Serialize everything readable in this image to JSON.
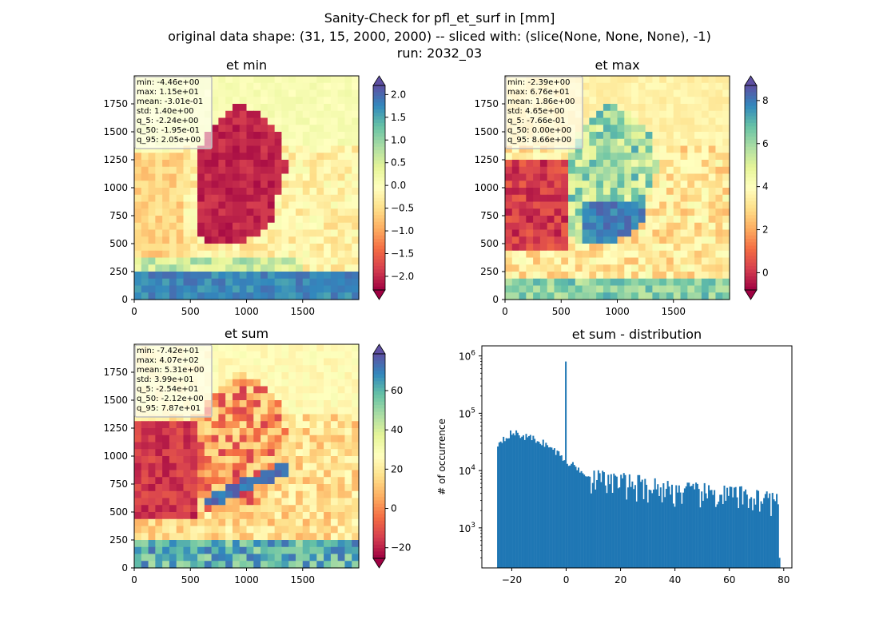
{
  "figure": {
    "title_lines": [
      "Sanity-Check for pfl_et_surf in [mm]",
      "original data shape: (31, 15, 2000, 2000) -- sliced with: (slice(None, None, None), -1)",
      "run: 2032_03"
    ]
  },
  "chart_data": [
    {
      "type": "heatmap",
      "title": "et min",
      "xticks": [
        0,
        500,
        1000,
        1500
      ],
      "yticks": [
        0,
        250,
        500,
        750,
        1000,
        1250,
        1500,
        1750
      ],
      "xlim": [
        0,
        2000
      ],
      "ylim": [
        0,
        2000
      ],
      "colormap": "Spectral",
      "colorbar": {
        "vmin": -2.3,
        "vmax": 2.2,
        "ticks": [
          "2.0",
          "1.5",
          "1.0",
          "0.5",
          "0.0",
          "−0.5",
          "−1.0",
          "−1.5",
          "−2.0"
        ],
        "tick_values": [
          2.0,
          1.5,
          1.0,
          0.5,
          0.0,
          -0.5,
          -1.0,
          -1.5,
          -2.0
        ],
        "extend": "both"
      },
      "stats": [
        "min: -4.46e+00",
        "max: 1.15e+01",
        "mean: -3.01e-01",
        "std: 1.40e+00",
        "q_5: -2.24e+00",
        "q_50: -1.95e-01",
        "q_95: 2.05e+00"
      ]
    },
    {
      "type": "heatmap",
      "title": "et max",
      "xticks": [
        0,
        500,
        1000,
        1500
      ],
      "yticks": [
        0,
        250,
        500,
        750,
        1000,
        1250,
        1500,
        1750
      ],
      "xlim": [
        0,
        2000
      ],
      "ylim": [
        0,
        2000
      ],
      "colormap": "Spectral",
      "colorbar": {
        "vmin": -0.8,
        "vmax": 8.7,
        "ticks": [
          "8",
          "6",
          "4",
          "2",
          "0"
        ],
        "tick_values": [
          8,
          6,
          4,
          2,
          0
        ],
        "extend": "both"
      },
      "stats": [
        "min: -2.39e+00",
        "max: 6.76e+01",
        "mean: 1.86e+00",
        "std: 4.65e+00",
        "q_5: -7.66e-01",
        "q_50: 0.00e+00",
        "q_95: 8.66e+00"
      ]
    },
    {
      "type": "heatmap",
      "title": "et sum",
      "xticks": [
        0,
        500,
        1000,
        1500
      ],
      "yticks": [
        0,
        250,
        500,
        750,
        1000,
        1250,
        1500,
        1750
      ],
      "xlim": [
        0,
        2000
      ],
      "ylim": [
        0,
        2000
      ],
      "colormap": "Spectral",
      "colorbar": {
        "vmin": -25.4,
        "vmax": 78.7,
        "ticks": [
          "60",
          "40",
          "20",
          "0",
          "−20"
        ],
        "tick_values": [
          60,
          40,
          20,
          0,
          -20
        ],
        "extend": "both"
      },
      "stats": [
        "min: -7.42e+01",
        "max: 4.07e+02",
        "mean: 5.31e+00",
        "std: 3.99e+01",
        "q_5: -2.54e+01",
        "q_50: -2.12e+00",
        "q_95: 7.87e+01"
      ]
    },
    {
      "type": "bar",
      "title": "et sum - distribution",
      "ylabel": "# of occurrence",
      "xlim": [
        -31,
        83
      ],
      "ylog": true,
      "ylim": [
        200,
        1500000
      ],
      "xticks": [
        -20,
        0,
        20,
        40,
        60,
        80
      ],
      "xtick_labels": [
        "−20",
        "0",
        "20",
        "40",
        "60",
        "80"
      ],
      "yticks": [
        1000,
        10000,
        100000,
        1000000
      ],
      "ytick_labels": [
        [
          "10",
          "3"
        ],
        [
          "10",
          "4"
        ],
        [
          "10",
          "5"
        ],
        [
          "10",
          "6"
        ]
      ],
      "bin_range": [
        -25.4,
        78.7
      ],
      "bin_count": 200,
      "bar_color": "#1f77b4",
      "spike": {
        "x": 0,
        "count": 800000
      },
      "profile": [
        [
          -25.4,
          28000
        ],
        [
          -24,
          34000
        ],
        [
          -22,
          40000
        ],
        [
          -20,
          45000
        ],
        [
          -18,
          44000
        ],
        [
          -16,
          40000
        ],
        [
          -14,
          38000
        ],
        [
          -12,
          36000
        ],
        [
          -10,
          33000
        ],
        [
          -8,
          30000
        ],
        [
          -6,
          25000
        ],
        [
          -4,
          22000
        ],
        [
          -2,
          18000
        ],
        [
          -1,
          17000
        ],
        [
          0,
          14000
        ],
        [
          2,
          13000
        ],
        [
          4,
          11000
        ],
        [
          6,
          10000
        ],
        [
          8,
          8500
        ],
        [
          10,
          8000
        ],
        [
          15,
          7500
        ],
        [
          20,
          7000
        ],
        [
          30,
          6000
        ],
        [
          40,
          5000
        ],
        [
          50,
          4500
        ],
        [
          60,
          4200
        ],
        [
          70,
          3800
        ],
        [
          75,
          3500
        ],
        [
          78.7,
          3000
        ]
      ]
    }
  ]
}
